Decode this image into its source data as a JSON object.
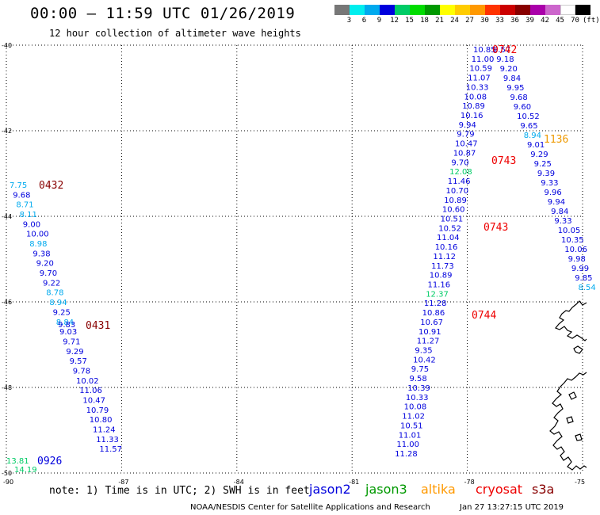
{
  "header": {
    "title": "00:00 – 11:59 UTC 01/26/2019",
    "subtitle": "12 hour collection of altimeter wave heights"
  },
  "scale": {
    "unit": "(ft)",
    "labels": [
      "3",
      "6",
      "9",
      "12",
      "15",
      "18",
      "21",
      "24",
      "27",
      "30",
      "33",
      "36",
      "39",
      "42",
      "45",
      "70"
    ],
    "colors": [
      "#777777",
      "#00eeee",
      "#00aaee",
      "#0000dd",
      "#00cc66",
      "#00dd00",
      "#009900",
      "#ffff00",
      "#ffcc00",
      "#ff9900",
      "#ff3300",
      "#cc0000",
      "#880000",
      "#aa00aa",
      "#cc66cc",
      "#ffffff",
      "#000000"
    ]
  },
  "axes": {
    "lat_labels": [
      "-40",
      "-42",
      "-44",
      "-46",
      "-48",
      "-50"
    ],
    "lon_labels": [
      "-90",
      "-87",
      "-84",
      "-81",
      "-78",
      "-75"
    ],
    "lat_range": [
      -50,
      -40
    ],
    "lon_range": [
      -90,
      -75
    ]
  },
  "passes": [
    {
      "id": "0432",
      "color": "#880000"
    },
    {
      "id": "0431",
      "color": "#880000"
    },
    {
      "id": "0926",
      "color": "#0000dd"
    },
    {
      "id": "0742",
      "color": "#ee0000"
    },
    {
      "id": "0743",
      "color": "#ee0000"
    },
    {
      "id": "0743",
      "color": "#ee0000"
    },
    {
      "id": "0744",
      "color": "#ee0000"
    },
    {
      "id": "1136",
      "color": "#ee9900"
    }
  ],
  "track_west": [
    {
      "v": "7.75",
      "c": "#00aaee"
    },
    {
      "v": "9.68",
      "c": "#0000dd"
    },
    {
      "v": "8.71",
      "c": "#00aaee"
    },
    {
      "v": "8.11",
      "c": "#00aaee"
    },
    {
      "v": "9.00",
      "c": "#0000dd"
    },
    {
      "v": "10.00",
      "c": "#0000dd"
    },
    {
      "v": "8.98",
      "c": "#00aaee"
    },
    {
      "v": "9.38",
      "c": "#0000dd"
    },
    {
      "v": "9.20",
      "c": "#0000dd"
    },
    {
      "v": "9.70",
      "c": "#0000dd"
    },
    {
      "v": "9.22",
      "c": "#0000dd"
    },
    {
      "v": "8.78",
      "c": "#00aaee"
    },
    {
      "v": "8.94",
      "c": "#00aaee"
    },
    {
      "v": "9.25",
      "c": "#0000dd"
    },
    {
      "v": "8.84",
      "c": "#00aaee"
    },
    {
      "v": "9.03",
      "c": "#0000dd"
    },
    {
      "v": "9.71",
      "c": "#0000dd"
    },
    {
      "v": "9.29",
      "c": "#0000dd"
    },
    {
      "v": "9.57",
      "c": "#0000dd"
    },
    {
      "v": "9.78",
      "c": "#0000dd"
    },
    {
      "v": "10.02",
      "c": "#0000dd"
    },
    {
      "v": "11.06",
      "c": "#0000dd"
    },
    {
      "v": "10.47",
      "c": "#0000dd"
    },
    {
      "v": "10.79",
      "c": "#0000dd"
    },
    {
      "v": "10.80",
      "c": "#0000dd"
    },
    {
      "v": "11.24",
      "c": "#0000dd"
    },
    {
      "v": "11.33",
      "c": "#0000dd"
    },
    {
      "v": "11.57",
      "c": "#0000dd"
    }
  ],
  "track_west_extra": [
    {
      "v": "9.83",
      "c": "#0000dd"
    },
    {
      "v": "13.81",
      "c": "#00cc66"
    },
    {
      "v": "14.19",
      "c": "#00cc66"
    }
  ],
  "track_mid": [
    {
      "v": "10.85",
      "c": "#0000dd"
    },
    {
      "v": "11.00",
      "c": "#0000dd"
    },
    {
      "v": "10.59",
      "c": "#0000dd"
    },
    {
      "v": "11.07",
      "c": "#0000dd"
    },
    {
      "v": "10.33",
      "c": "#0000dd"
    },
    {
      "v": "10.08",
      "c": "#0000dd"
    },
    {
      "v": "10.89",
      "c": "#0000dd"
    },
    {
      "v": "10.16",
      "c": "#0000dd"
    },
    {
      "v": "9.94",
      "c": "#0000dd"
    },
    {
      "v": "9.79",
      "c": "#0000dd"
    },
    {
      "v": "10.47",
      "c": "#0000dd"
    },
    {
      "v": "10.87",
      "c": "#0000dd"
    },
    {
      "v": "9.70",
      "c": "#0000dd"
    },
    {
      "v": "12.08",
      "c": "#00cc66"
    },
    {
      "v": "11.46",
      "c": "#0000dd"
    },
    {
      "v": "10.70",
      "c": "#0000dd"
    },
    {
      "v": "10.89",
      "c": "#0000dd"
    },
    {
      "v": "10.60",
      "c": "#0000dd"
    },
    {
      "v": "10.51",
      "c": "#0000dd"
    },
    {
      "v": "10.52",
      "c": "#0000dd"
    },
    {
      "v": "11.04",
      "c": "#0000dd"
    },
    {
      "v": "10.16",
      "c": "#0000dd"
    },
    {
      "v": "11.12",
      "c": "#0000dd"
    },
    {
      "v": "11.73",
      "c": "#0000dd"
    },
    {
      "v": "10.89",
      "c": "#0000dd"
    },
    {
      "v": "11.16",
      "c": "#0000dd"
    },
    {
      "v": "12.37",
      "c": "#00cc66"
    },
    {
      "v": "11.28",
      "c": "#0000dd"
    },
    {
      "v": "10.86",
      "c": "#0000dd"
    },
    {
      "v": "10.67",
      "c": "#0000dd"
    },
    {
      "v": "10.91",
      "c": "#0000dd"
    },
    {
      "v": "11.27",
      "c": "#0000dd"
    },
    {
      "v": "9.35",
      "c": "#0000dd"
    },
    {
      "v": "10.42",
      "c": "#0000dd"
    },
    {
      "v": "9.75",
      "c": "#0000dd"
    },
    {
      "v": "9.58",
      "c": "#0000dd"
    },
    {
      "v": "10.39",
      "c": "#0000dd"
    },
    {
      "v": "10.33",
      "c": "#0000dd"
    },
    {
      "v": "10.08",
      "c": "#0000dd"
    },
    {
      "v": "11.02",
      "c": "#0000dd"
    },
    {
      "v": "10.51",
      "c": "#0000dd"
    },
    {
      "v": "11.01",
      "c": "#0000dd"
    },
    {
      "v": "11.00",
      "c": "#0000dd"
    },
    {
      "v": "11.28",
      "c": "#0000dd"
    }
  ],
  "track_east": [
    {
      "v": "9.57",
      "c": "#0000dd"
    },
    {
      "v": "9.18",
      "c": "#0000dd"
    },
    {
      "v": "9.20",
      "c": "#0000dd"
    },
    {
      "v": "9.84",
      "c": "#0000dd"
    },
    {
      "v": "9.95",
      "c": "#0000dd"
    },
    {
      "v": "9.68",
      "c": "#0000dd"
    },
    {
      "v": "9.60",
      "c": "#0000dd"
    },
    {
      "v": "10.52",
      "c": "#0000dd"
    },
    {
      "v": "9.65",
      "c": "#0000dd"
    },
    {
      "v": "8.94",
      "c": "#00aaee"
    },
    {
      "v": "9.01",
      "c": "#0000dd"
    },
    {
      "v": "9.29",
      "c": "#0000dd"
    },
    {
      "v": "9.25",
      "c": "#0000dd"
    },
    {
      "v": "9.39",
      "c": "#0000dd"
    },
    {
      "v": "9.33",
      "c": "#0000dd"
    },
    {
      "v": "9.96",
      "c": "#0000dd"
    },
    {
      "v": "9.94",
      "c": "#0000dd"
    },
    {
      "v": "9.84",
      "c": "#0000dd"
    },
    {
      "v": "9.33",
      "c": "#0000dd"
    },
    {
      "v": "10.05",
      "c": "#0000dd"
    },
    {
      "v": "10.35",
      "c": "#0000dd"
    },
    {
      "v": "10.06",
      "c": "#0000dd"
    },
    {
      "v": "9.98",
      "c": "#0000dd"
    },
    {
      "v": "9.99",
      "c": "#0000dd"
    },
    {
      "v": "9.85",
      "c": "#0000dd"
    },
    {
      "v": "8.54",
      "c": "#00aaee"
    }
  ],
  "footer": {
    "note": "note: 1) Time is in UTC; 2) SWH is in feet",
    "satellites": [
      {
        "name": "jason2",
        "color": "#0000dd"
      },
      {
        "name": "jason3",
        "color": "#009900"
      },
      {
        "name": "altika",
        "color": "#ff9900"
      },
      {
        "name": "cryosat",
        "color": "#ee0000"
      },
      {
        "name": "s3a",
        "color": "#880000"
      }
    ],
    "credit": "NOAA/NESDIS Center for Satellite Applications and Research",
    "timestamp": "Jan 27 13:27:15 UTC 2019"
  }
}
